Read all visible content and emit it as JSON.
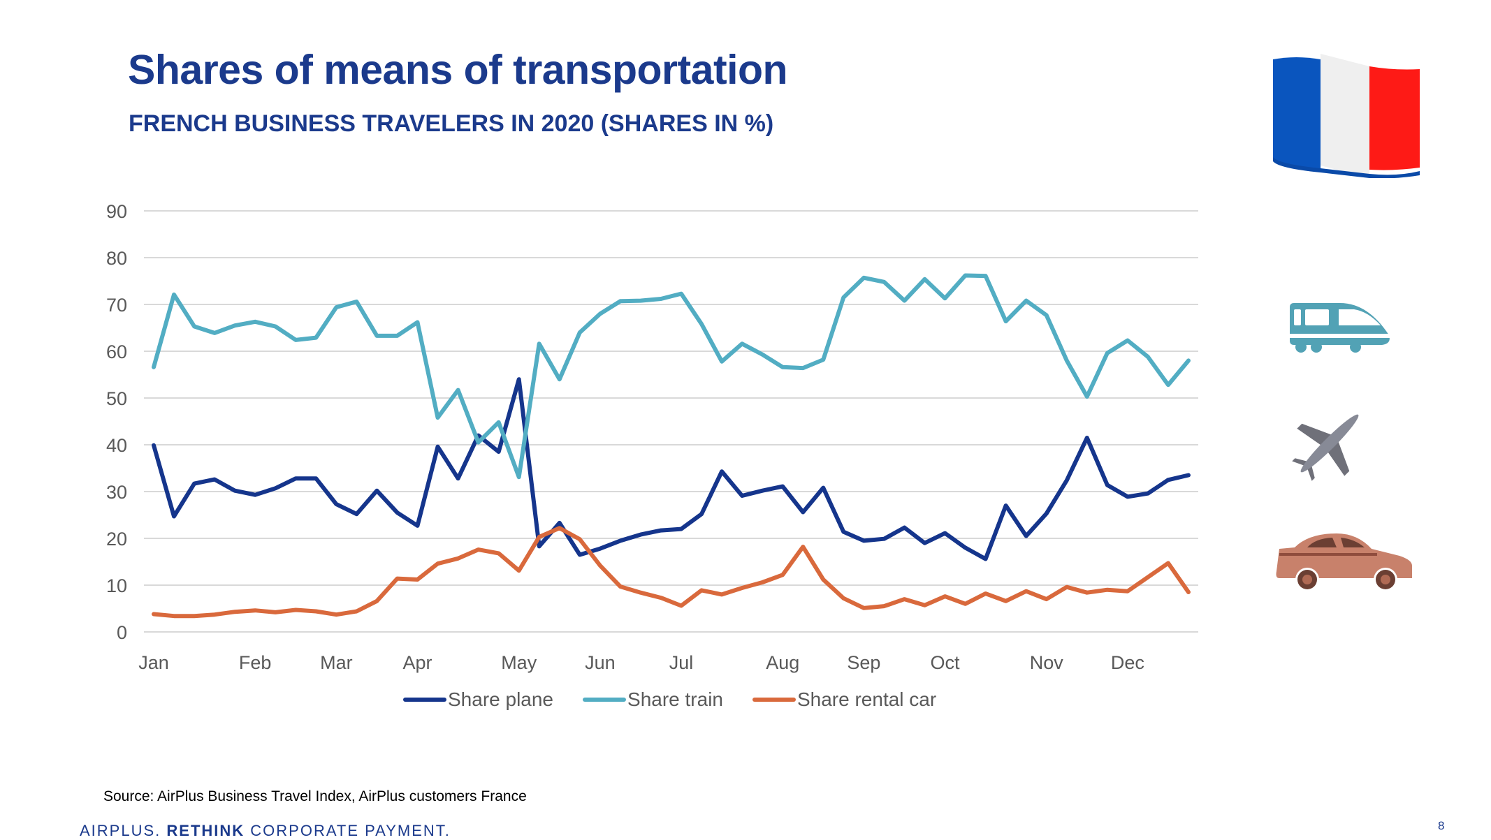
{
  "header": {
    "title": "Shares of means of transportation",
    "subtitle": "FRENCH BUSINESS TRAVELERS IN 2020 (SHARES IN %)"
  },
  "icons": {
    "flag": "france-flag-icon",
    "train": "train-icon",
    "plane": "airplane-icon",
    "car": "car-icon"
  },
  "colors": {
    "title": "#1b3a8c",
    "plane": "#15358c",
    "train": "#52adc3",
    "rental_car": "#d9693c",
    "grid": "#d9d9d9",
    "axis_text": "#595959"
  },
  "chart_data": {
    "type": "line",
    "title": "Shares of means of transportation",
    "subtitle": "FRENCH BUSINESS TRAVELERS IN 2020 (SHARES IN %)",
    "xlabel": "",
    "ylabel": "",
    "ylim": [
      0,
      90
    ],
    "yticks": [
      0,
      10,
      20,
      30,
      40,
      50,
      60,
      70,
      80,
      90
    ],
    "grid": true,
    "legend_position": "bottom",
    "x_points": 52,
    "x_tick_labels": [
      {
        "index": 0,
        "label": "Jan"
      },
      {
        "index": 5,
        "label": "Feb"
      },
      {
        "index": 9,
        "label": "Mar"
      },
      {
        "index": 13,
        "label": "Apr"
      },
      {
        "index": 18,
        "label": "May"
      },
      {
        "index": 22,
        "label": "Jun"
      },
      {
        "index": 26,
        "label": "Jul"
      },
      {
        "index": 31,
        "label": "Aug"
      },
      {
        "index": 35,
        "label": "Sep"
      },
      {
        "index": 39,
        "label": "Oct"
      },
      {
        "index": 44,
        "label": "Nov"
      },
      {
        "index": 48,
        "label": "Dec"
      }
    ],
    "series": [
      {
        "name": "Share plane",
        "color": "#15358c",
        "values": [
          39.9,
          24.7,
          31.7,
          32.6,
          30.2,
          29.3,
          30.7,
          32.8,
          32.8,
          27.3,
          25.2,
          30.2,
          25.5,
          22.7,
          39.6,
          32.8,
          42.0,
          38.5,
          54.0,
          18.3,
          23.3,
          16.5,
          17.8,
          19.5,
          20.8,
          21.7,
          22.0,
          25.2,
          34.3,
          29.1,
          30.2,
          31.1,
          25.6,
          30.8,
          21.4,
          19.5,
          19.9,
          22.3,
          19.0,
          21.1,
          18.0,
          15.6,
          27.0,
          20.5,
          25.3,
          32.4,
          41.5,
          31.4,
          28.9,
          29.6,
          32.5,
          33.5
        ]
      },
      {
        "name": "Share train",
        "color": "#52adc3",
        "values": [
          56.6,
          72.1,
          65.3,
          63.9,
          65.5,
          66.3,
          65.3,
          62.4,
          62.9,
          69.4,
          70.6,
          63.3,
          63.3,
          66.2,
          45.8,
          51.7,
          40.5,
          44.8,
          33.1,
          61.6,
          54.0,
          64.0,
          68.0,
          70.7,
          70.8,
          71.2,
          72.3,
          65.8,
          57.8,
          61.6,
          59.3,
          56.6,
          56.4,
          58.2,
          71.5,
          75.7,
          74.8,
          70.8,
          75.4,
          71.3,
          76.2,
          76.1,
          66.4,
          70.8,
          67.7,
          58.0,
          50.3,
          59.6,
          62.3,
          58.8,
          52.8,
          58.0
        ]
      },
      {
        "name": "Share rental car",
        "color": "#d9693c",
        "values": [
          3.8,
          3.4,
          3.4,
          3.7,
          4.3,
          4.6,
          4.2,
          4.7,
          4.4,
          3.7,
          4.4,
          6.6,
          11.4,
          11.2,
          14.6,
          15.7,
          17.6,
          16.8,
          13.1,
          20.3,
          22.2,
          19.8,
          14.2,
          9.7,
          8.4,
          7.3,
          5.6,
          8.9,
          8.0,
          9.4,
          10.6,
          12.2,
          18.2,
          11.2,
          7.2,
          5.1,
          5.5,
          7.0,
          5.7,
          7.6,
          6.0,
          8.2,
          6.6,
          8.7,
          7.0,
          9.6,
          8.4,
          9.0,
          8.7,
          11.7,
          14.7,
          8.5
        ]
      }
    ]
  },
  "legend": {
    "items": [
      {
        "label": "Share plane"
      },
      {
        "label": "Share train"
      },
      {
        "label": "Share rental car"
      }
    ]
  },
  "footer": {
    "source": "Source: AirPlus Business Travel Index, AirPlus customers France",
    "brand_prefix": "AIRPLUS.",
    "brand_bold": "RETHINK",
    "brand_suffix": "CORPORATE PAYMENT.",
    "page_number": "8"
  }
}
